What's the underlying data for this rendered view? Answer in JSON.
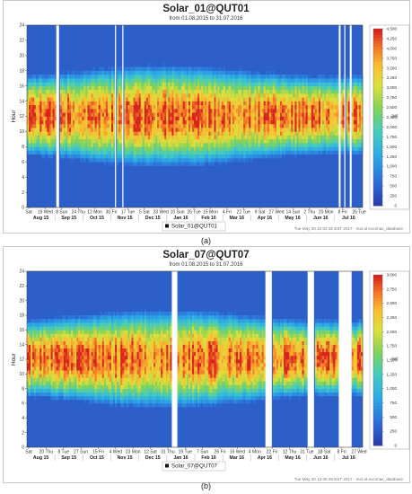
{
  "chart_data": [
    {
      "type": "heatmap",
      "title": "Solar_01@QUT01",
      "subtitle": "from 01.08.2015 to 31.07.2016",
      "ylabel": "Hour",
      "ylim": [
        0,
        24
      ],
      "y_ticks": [
        0,
        2,
        4,
        6,
        8,
        10,
        12,
        14,
        16,
        18,
        20,
        22,
        24
      ],
      "x_tick_labels": [
        "Sat",
        "19 Wed",
        "8 Sun",
        "24 Thu",
        "12 Mon",
        "30 Fri",
        "17 Tue",
        "5 Sat",
        "23 Wed",
        "10 Sun",
        "26 Tue",
        "15 Mon",
        "4 Fri",
        "22 Tue",
        "9 Sat",
        "27 Wed",
        "14 Sun",
        "2 Thu",
        "20 Mon",
        "8 Fri",
        "26 Tue"
      ],
      "month_labels": [
        "Aug 15",
        "Sep 15",
        "Oct 15",
        "Nov 15",
        "Dec 15",
        "Jan 16",
        "Feb 16",
        "Mar 16",
        "Apr 16",
        "May 16",
        "Jun 16",
        "Jul 16"
      ],
      "legend": [
        "Solar_01@QUT01"
      ],
      "colorbar": {
        "min": 0,
        "max": 4500,
        "unit": "[W]",
        "ticks": [
          0,
          250,
          500,
          750,
          1000,
          1250,
          1500,
          1750,
          2000,
          2250,
          2500,
          2750,
          3000,
          3250,
          3500,
          3750,
          4000,
          4250,
          4500
        ]
      },
      "daylight_hours": [
        6,
        18
      ],
      "peak_hours": [
        10,
        14
      ],
      "peak_value": 4500,
      "footer": "Tue May 30 12:04:32 EST 2017 · mxt at eucimax_database",
      "caption": "(a)"
    },
    {
      "type": "heatmap",
      "title": "Solar_07@QUT07",
      "subtitle": "from 01.08.2015 to 31.07.2016",
      "ylabel": "Hour",
      "ylim": [
        0,
        24
      ],
      "y_ticks": [
        0,
        2,
        4,
        6,
        8,
        10,
        12,
        14,
        16,
        18,
        20,
        22,
        24
      ],
      "x_tick_labels": [
        "Sat",
        "20 Thu",
        "8 Tue",
        "27 Sun",
        "15 Fri",
        "4 Wed",
        "23 Mon",
        "12 Sat",
        "31 Thu",
        "19 Tue",
        "7 Sun",
        "26 Fri",
        "16 Wed",
        "4 Mon",
        "22 Fri",
        "12 Thu",
        "31 Tue",
        "18 Sat",
        "8 Fri",
        "27 Wed"
      ],
      "month_labels": [
        "Aug 15",
        "Sep 15",
        "Oct 15",
        "Nov 15",
        "Dec 15",
        "Jan 16",
        "Feb 16",
        "Mar 16",
        "Apr 16",
        "May 16",
        "Jun 16",
        "Jul 16"
      ],
      "legend": [
        "Solar_07@QUT07"
      ],
      "colorbar": {
        "min": 0,
        "max": 3000,
        "unit": "[W]",
        "ticks": [
          0,
          250,
          500,
          750,
          1000,
          1250,
          1500,
          1750,
          2000,
          2250,
          2500,
          2750,
          3000
        ]
      },
      "daylight_hours": [
        6,
        18
      ],
      "peak_hours": [
        10,
        15
      ],
      "peak_value": 3000,
      "footer": "Tue May 30 12:06:28 EST 2017 · mxt at eucimax_database",
      "caption": "(b)"
    }
  ]
}
